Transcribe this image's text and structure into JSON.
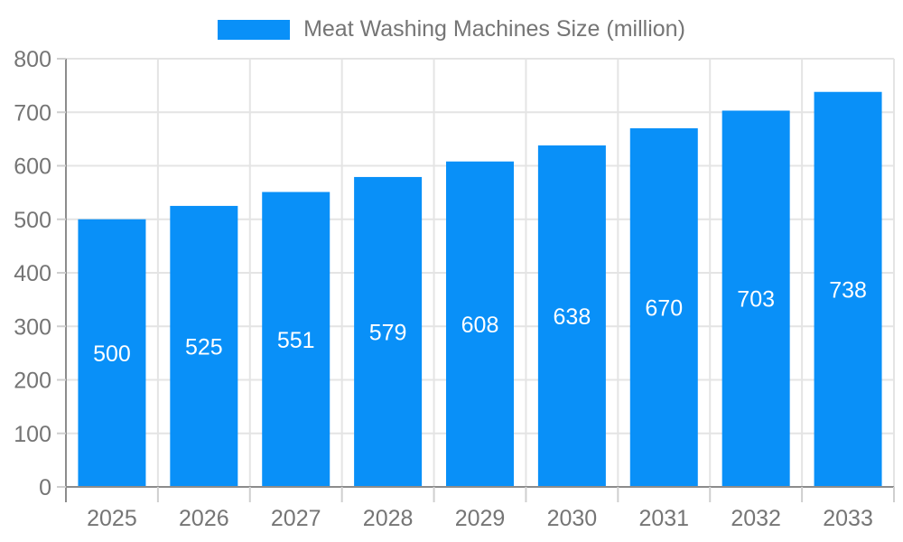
{
  "legend": {
    "label": "Meat Washing Machines Size (million)"
  },
  "chart_data": {
    "type": "bar",
    "title": "",
    "series_name": "Meat Washing Machines Size (million)",
    "categories": [
      "2025",
      "2026",
      "2027",
      "2028",
      "2029",
      "2030",
      "2031",
      "2032",
      "2033"
    ],
    "values": [
      500,
      525,
      551,
      579,
      608,
      638,
      670,
      703,
      738
    ],
    "xlabel": "",
    "ylabel": "",
    "ylim": [
      0,
      800
    ],
    "ytick_step": 100,
    "yticks": [
      0,
      100,
      200,
      300,
      400,
      500,
      600,
      700,
      800
    ],
    "grid": true,
    "legend_position": "top-center",
    "value_labels": "inside-center",
    "colors": {
      "bar": "#0990f8",
      "value_label": "#ffffff",
      "axis_text": "#757575",
      "grid_line": "#e4e4e4",
      "axis_line": "#8c8c8c",
      "tick_line": "#cfcfcf",
      "background": "#ffffff"
    }
  }
}
